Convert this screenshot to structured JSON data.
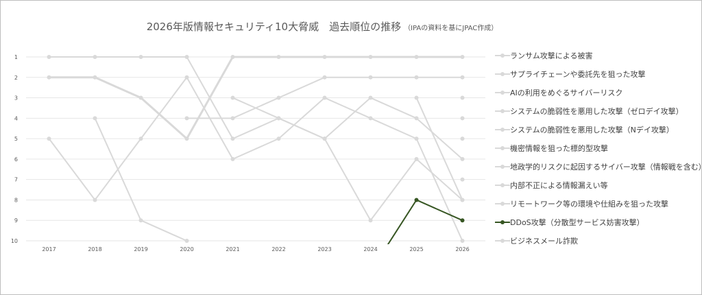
{
  "chart_data": {
    "type": "line",
    "title": "2026年版情報セキュリティ10大脅威　過去順位の推移",
    "subtitle": "（IPAの資料を基にJPAC作成）",
    "x": [
      "2017",
      "2018",
      "2019",
      "2020",
      "2021",
      "2022",
      "2023",
      "2024",
      "2025",
      "2026"
    ],
    "y_ticks": [
      "1",
      "2",
      "3",
      "4",
      "5",
      "6",
      "7",
      "8",
      "9",
      "10"
    ],
    "ylim": [
      1,
      10
    ],
    "y_reversed": true,
    "grid": true,
    "legend_position": "right",
    "series": [
      {
        "name": "ランサム攻撃による被害",
        "values": [
          2,
          2,
          3,
          5,
          1,
          1,
          1,
          1,
          1,
          1
        ],
        "color": "#d9d9d9",
        "width": 3
      },
      {
        "name": "サプライチェーンや委託先を狙った攻撃",
        "values": [
          null,
          null,
          null,
          4,
          4,
          3,
          2,
          2,
          2,
          2
        ],
        "color": "#d9d9d9",
        "width": 2
      },
      {
        "name": "AIの利用をめぐるサイバーリスク",
        "values": [
          null,
          null,
          null,
          null,
          null,
          null,
          null,
          null,
          null,
          3
        ],
        "color": "#d9d9d9",
        "width": 2
      },
      {
        "name": "システムの脆弱性を悪用した攻撃（ゼロデイ攻撃）",
        "values": [
          null,
          null,
          null,
          null,
          null,
          null,
          null,
          null,
          null,
          4
        ],
        "color": "#d9d9d9",
        "width": 2
      },
      {
        "name": "システムの脆弱性を悪用した攻撃（Nデイ攻撃）",
        "values": [
          null,
          null,
          null,
          null,
          null,
          null,
          null,
          null,
          null,
          5
        ],
        "color": "#d9d9d9",
        "width": 2
      },
      {
        "name": "機密情報を狙った標的型攻撃",
        "values": [
          1,
          1,
          1,
          1,
          5,
          4,
          5,
          3,
          4,
          6
        ],
        "color": "#d9d9d9",
        "width": 2
      },
      {
        "name": "地政学的リスクに起因するサイバー攻撃（情報戦を含む）",
        "values": [
          null,
          null,
          null,
          null,
          null,
          null,
          null,
          null,
          null,
          7
        ],
        "color": "#d9d9d9",
        "width": 2
      },
      {
        "name": "内部不正による情報漏えい等",
        "values": [
          null,
          4,
          9,
          10,
          null,
          null,
          null,
          null,
          3,
          8
        ],
        "color": "#d9d9d9",
        "width": 2
      },
      {
        "name": "リモートワーク等の環境や仕組みを狙った攻撃",
        "values": [
          null,
          null,
          null,
          null,
          3,
          4,
          5,
          9,
          6,
          8
        ],
        "color": "#d9d9d9",
        "width": 2
      },
      {
        "name": "DDoS攻撃（分散型サービス妨害攻撃）",
        "values": [
          null,
          null,
          null,
          null,
          null,
          null,
          null,
          null,
          8,
          9
        ],
        "color": "#375623",
        "width": 2
      },
      {
        "name": "ビジネスメール詐欺",
        "values": [
          5,
          8,
          5,
          2,
          6,
          5,
          3,
          4,
          5,
          10
        ],
        "color": "#d9d9d9",
        "width": 2
      }
    ]
  }
}
